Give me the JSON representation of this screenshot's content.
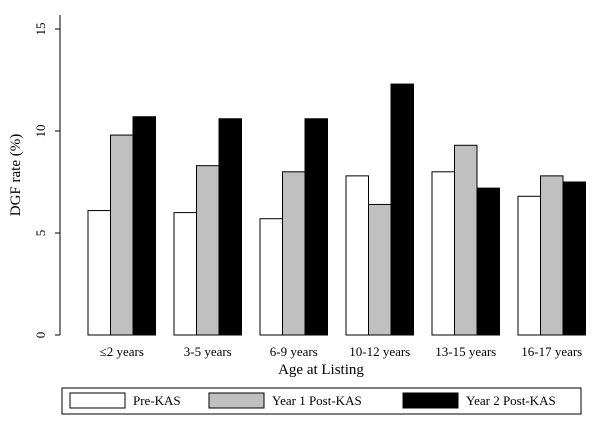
{
  "chart_data": {
    "type": "bar",
    "xlabel": "Age at Listing",
    "ylabel": "DGF rate (%)",
    "ylim": [
      0,
      15
    ],
    "yticks": [
      0,
      5,
      10,
      15
    ],
    "grid": false,
    "legend_position": "bottom",
    "categories": [
      "≤2 years",
      "3-5 years",
      "6-9 years",
      "10-12 years",
      "13-15 years",
      "16-17 years"
    ],
    "series": [
      {
        "name": "Pre-KAS",
        "color": "#ffffff",
        "values": [
          6.1,
          6.0,
          5.7,
          7.8,
          8.0,
          6.8
        ]
      },
      {
        "name": "Year 1 Post-KAS",
        "color": "#c0c0c0",
        "values": [
          9.8,
          8.3,
          8.0,
          6.4,
          9.3,
          7.8
        ]
      },
      {
        "name": "Year 2 Post-KAS",
        "color": "#000000",
        "values": [
          10.7,
          10.6,
          10.6,
          12.3,
          7.2,
          7.5
        ]
      }
    ]
  }
}
